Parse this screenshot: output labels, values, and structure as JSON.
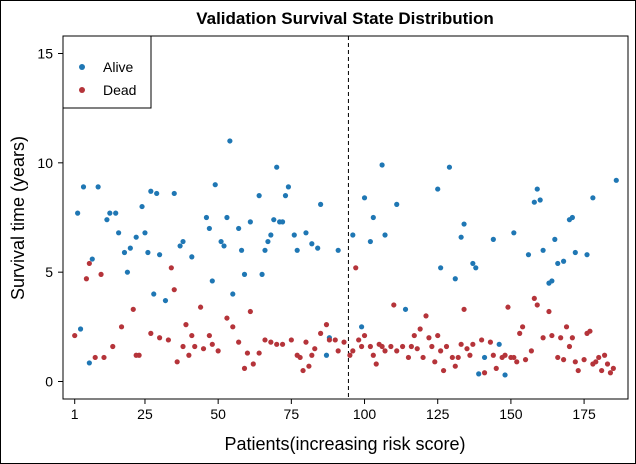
{
  "chart_data": {
    "type": "scatter",
    "title": "Validation Survival State Distribution",
    "xlabel": "Patients(increasing risk score)",
    "ylabel": "Survival time (years)",
    "xlim": [
      -3,
      190
    ],
    "ylim": [
      -0.8,
      15.8
    ],
    "xticks": [
      1,
      25,
      50,
      75,
      100,
      125,
      150,
      175
    ],
    "yticks": [
      0,
      5,
      10,
      15
    ],
    "cutoff_x": 94.5,
    "legend_position": "top-left",
    "colors": {
      "alive": "#1F77B4",
      "dead": "#B5343A"
    },
    "series": [
      {
        "name": "Alive",
        "color": "#1F77B4",
        "points": [
          [
            2,
            7.7
          ],
          [
            3,
            2.4
          ],
          [
            4,
            8.9
          ],
          [
            6,
            0.85
          ],
          [
            7,
            5.6
          ],
          [
            9,
            8.9
          ],
          [
            12,
            7.4
          ],
          [
            13,
            7.7
          ],
          [
            15,
            7.7
          ],
          [
            16,
            6.8
          ],
          [
            18,
            5.9
          ],
          [
            19,
            5.0
          ],
          [
            20,
            6.1
          ],
          [
            22,
            6.6
          ],
          [
            24,
            8.0
          ],
          [
            25,
            6.8
          ],
          [
            26,
            5.9
          ],
          [
            27,
            8.7
          ],
          [
            28,
            4.0
          ],
          [
            29,
            8.6
          ],
          [
            30,
            5.8
          ],
          [
            32,
            3.7
          ],
          [
            35,
            8.6
          ],
          [
            37,
            6.2
          ],
          [
            38,
            6.4
          ],
          [
            41,
            5.7
          ],
          [
            46,
            7.5
          ],
          [
            47,
            7.0
          ],
          [
            48,
            4.6
          ],
          [
            49,
            9.0
          ],
          [
            51,
            6.4
          ],
          [
            52,
            6.2
          ],
          [
            53,
            7.5
          ],
          [
            54,
            11.0
          ],
          [
            55,
            4.0
          ],
          [
            57,
            7.0
          ],
          [
            58,
            6.0
          ],
          [
            59,
            4.9
          ],
          [
            61,
            7.3
          ],
          [
            64,
            8.5
          ],
          [
            65,
            4.9
          ],
          [
            66,
            6.0
          ],
          [
            67,
            6.4
          ],
          [
            68,
            6.7
          ],
          [
            69,
            7.4
          ],
          [
            70,
            9.8
          ],
          [
            71,
            7.3
          ],
          [
            72,
            7.3
          ],
          [
            73,
            8.5
          ],
          [
            74,
            8.9
          ],
          [
            76,
            6.7
          ],
          [
            77,
            6.0
          ],
          [
            80,
            6.8
          ],
          [
            82,
            6.3
          ],
          [
            84,
            6.1
          ],
          [
            85,
            8.1
          ],
          [
            87,
            1.2
          ],
          [
            88,
            2.0
          ],
          [
            91,
            6.0
          ],
          [
            96,
            6.7
          ],
          [
            99,
            2.5
          ],
          [
            100,
            8.4
          ],
          [
            102,
            6.4
          ],
          [
            103,
            7.5
          ],
          [
            106,
            9.9
          ],
          [
            107,
            6.7
          ],
          [
            111,
            8.1
          ],
          [
            114,
            3.3
          ],
          [
            125,
            8.8
          ],
          [
            126,
            5.2
          ],
          [
            129,
            9.8
          ],
          [
            131,
            4.7
          ],
          [
            133,
            6.6
          ],
          [
            134,
            7.2
          ],
          [
            137,
            5.4
          ],
          [
            138,
            5.2
          ],
          [
            139,
            0.35
          ],
          [
            141,
            1.1
          ],
          [
            144,
            6.5
          ],
          [
            146,
            1.7
          ],
          [
            148,
            0.3
          ],
          [
            151,
            6.8
          ],
          [
            156,
            5.8
          ],
          [
            158,
            8.2
          ],
          [
            159,
            8.8
          ],
          [
            160,
            8.3
          ],
          [
            161,
            6.0
          ],
          [
            163,
            4.5
          ],
          [
            164,
            4.6
          ],
          [
            165,
            6.5
          ],
          [
            166,
            5.4
          ],
          [
            168,
            5.5
          ],
          [
            170,
            7.4
          ],
          [
            171,
            7.5
          ],
          [
            172,
            5.9
          ],
          [
            176,
            5.8
          ],
          [
            178,
            8.4
          ],
          [
            186,
            9.2
          ]
        ]
      },
      {
        "name": "Dead",
        "color": "#B5343A",
        "points": [
          [
            1,
            2.1
          ],
          [
            5,
            4.7
          ],
          [
            6,
            5.4
          ],
          [
            8,
            1.1
          ],
          [
            10,
            4.9
          ],
          [
            11,
            1.1
          ],
          [
            14,
            1.6
          ],
          [
            17,
            2.5
          ],
          [
            21,
            3.3
          ],
          [
            22,
            1.2
          ],
          [
            23,
            1.2
          ],
          [
            27,
            2.2
          ],
          [
            30,
            2.0
          ],
          [
            33,
            1.9
          ],
          [
            34,
            5.2
          ],
          [
            35,
            4.2
          ],
          [
            36,
            0.9
          ],
          [
            38,
            1.6
          ],
          [
            39,
            2.6
          ],
          [
            40,
            1.2
          ],
          [
            41,
            2.1
          ],
          [
            42,
            1.6
          ],
          [
            44,
            3.4
          ],
          [
            45,
            1.5
          ],
          [
            47,
            2.1
          ],
          [
            48,
            1.7
          ],
          [
            50,
            1.4
          ],
          [
            53,
            2.9
          ],
          [
            55,
            2.5
          ],
          [
            57,
            1.8
          ],
          [
            59,
            0.6
          ],
          [
            60,
            1.3
          ],
          [
            61,
            3.2
          ],
          [
            62,
            0.8
          ],
          [
            64,
            1.3
          ],
          [
            66,
            1.9
          ],
          [
            68,
            1.8
          ],
          [
            70,
            1.7
          ],
          [
            72,
            1.7
          ],
          [
            75,
            1.9
          ],
          [
            77,
            1.2
          ],
          [
            78,
            1.1
          ],
          [
            79,
            0.5
          ],
          [
            80,
            1.8
          ],
          [
            81,
            0.7
          ],
          [
            82,
            1.2
          ],
          [
            83,
            1.5
          ],
          [
            85,
            2.2
          ],
          [
            87,
            2.6
          ],
          [
            88,
            1.9
          ],
          [
            90,
            1.9
          ],
          [
            91,
            1.4
          ],
          [
            93,
            1.8
          ],
          [
            95,
            1.2
          ],
          [
            96,
            1.4
          ],
          [
            97,
            5.2
          ],
          [
            98,
            1.9
          ],
          [
            99,
            1.6
          ],
          [
            100,
            2.1
          ],
          [
            102,
            1.6
          ],
          [
            103,
            1.2
          ],
          [
            104,
            0.8
          ],
          [
            105,
            1.7
          ],
          [
            106,
            1.6
          ],
          [
            107,
            1.4
          ],
          [
            109,
            1.6
          ],
          [
            110,
            3.5
          ],
          [
            111,
            1.4
          ],
          [
            113,
            1.6
          ],
          [
            115,
            1.1
          ],
          [
            116,
            1.6
          ],
          [
            117,
            2.1
          ],
          [
            118,
            1.5
          ],
          [
            119,
            2.4
          ],
          [
            120,
            1.1
          ],
          [
            121,
            3.0
          ],
          [
            122,
            2.0
          ],
          [
            123,
            1.6
          ],
          [
            124,
            0.9
          ],
          [
            125,
            2.1
          ],
          [
            126,
            1.4
          ],
          [
            127,
            0.5
          ],
          [
            128,
            1.6
          ],
          [
            130,
            1.1
          ],
          [
            131,
            0.7
          ],
          [
            132,
            1.1
          ],
          [
            133,
            1.7
          ],
          [
            134,
            3.3
          ],
          [
            135,
            1.5
          ],
          [
            136,
            1.2
          ],
          [
            137,
            1.7
          ],
          [
            140,
            1.9
          ],
          [
            141,
            0.4
          ],
          [
            143,
            1.8
          ],
          [
            144,
            1.2
          ],
          [
            145,
            0.6
          ],
          [
            147,
            1.1
          ],
          [
            148,
            1.2
          ],
          [
            149,
            3.4
          ],
          [
            150,
            1.1
          ],
          [
            151,
            1.1
          ],
          [
            152,
            0.9
          ],
          [
            153,
            2.2
          ],
          [
            154,
            2.5
          ],
          [
            155,
            1.0
          ],
          [
            157,
            1.4
          ],
          [
            158,
            3.8
          ],
          [
            159,
            3.5
          ],
          [
            161,
            2.0
          ],
          [
            163,
            3.2
          ],
          [
            164,
            2.1
          ],
          [
            166,
            1.1
          ],
          [
            167,
            2.0
          ],
          [
            168,
            1.0
          ],
          [
            169,
            2.5
          ],
          [
            170,
            1.6
          ],
          [
            171,
            2.0
          ],
          [
            172,
            0.9
          ],
          [
            173,
            0.5
          ],
          [
            175,
            1.0
          ],
          [
            176,
            2.2
          ],
          [
            177,
            2.3
          ],
          [
            178,
            0.8
          ],
          [
            179,
            0.9
          ],
          [
            180,
            1.1
          ],
          [
            181,
            0.5
          ],
          [
            182,
            1.2
          ],
          [
            183,
            0.8
          ],
          [
            184,
            0.4
          ],
          [
            185,
            0.6
          ]
        ]
      }
    ]
  }
}
